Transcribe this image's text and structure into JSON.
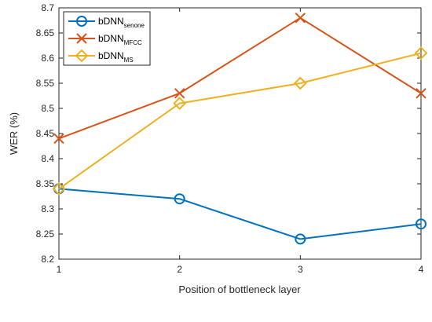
{
  "chart_data": {
    "type": "line",
    "x": [
      1,
      2,
      3,
      4
    ],
    "xlabel": "Position of bottleneck layer",
    "ylabel": "WER (%)",
    "xlim": [
      1,
      4
    ],
    "ylim": [
      8.2,
      8.7
    ],
    "xticks": [
      "1",
      "2",
      "3",
      "4"
    ],
    "yticks": [
      "8.2",
      "8.25",
      "8.3",
      "8.35",
      "8.4",
      "8.45",
      "8.5",
      "8.55",
      "8.6",
      "8.65",
      "8.7"
    ],
    "grid": false,
    "legend_position": "top-left",
    "series": [
      {
        "name": "bDNN",
        "name_subscript": "senone",
        "marker": "circle",
        "color": "#0072BD",
        "values": [
          8.34,
          8.32,
          8.24,
          8.27
        ]
      },
      {
        "name": "bDNN",
        "name_subscript": "MFCC",
        "marker": "x",
        "color": "#D95319",
        "values": [
          8.44,
          8.53,
          8.68,
          8.53
        ]
      },
      {
        "name": "bDNN",
        "name_subscript": "MS",
        "marker": "diamond",
        "color": "#EDB120",
        "values": [
          8.34,
          8.51,
          8.55,
          8.61
        ]
      }
    ]
  }
}
